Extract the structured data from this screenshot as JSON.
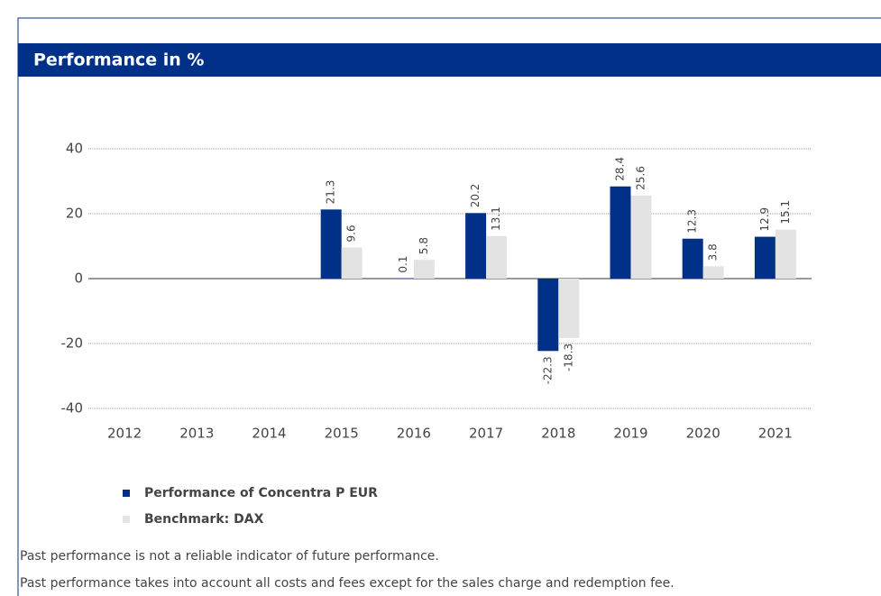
{
  "header": {
    "title": "Performance in %"
  },
  "chart_data": {
    "type": "bar",
    "categories": [
      "2012",
      "2013",
      "2014",
      "2015",
      "2016",
      "2017",
      "2018",
      "2019",
      "2020",
      "2021"
    ],
    "series": [
      {
        "name": "Performance of Concentra P EUR",
        "color": "#003087",
        "values": [
          null,
          null,
          null,
          21.3,
          0.1,
          20.2,
          -22.3,
          28.4,
          12.3,
          12.9
        ]
      },
      {
        "name": "Benchmark: DAX",
        "color": "#e3e3e3",
        "values": [
          null,
          null,
          null,
          9.6,
          5.8,
          13.1,
          -18.3,
          25.6,
          3.8,
          15.1
        ]
      }
    ],
    "ylim": [
      -40,
      40
    ],
    "yticks": [
      -40,
      -20,
      0,
      20,
      40
    ],
    "grid": true
  },
  "footnotes": [
    "Past performance is not a reliable indicator of future performance.",
    "Past performance takes into account all costs and fees except for the sales charge and redemption fee."
  ]
}
